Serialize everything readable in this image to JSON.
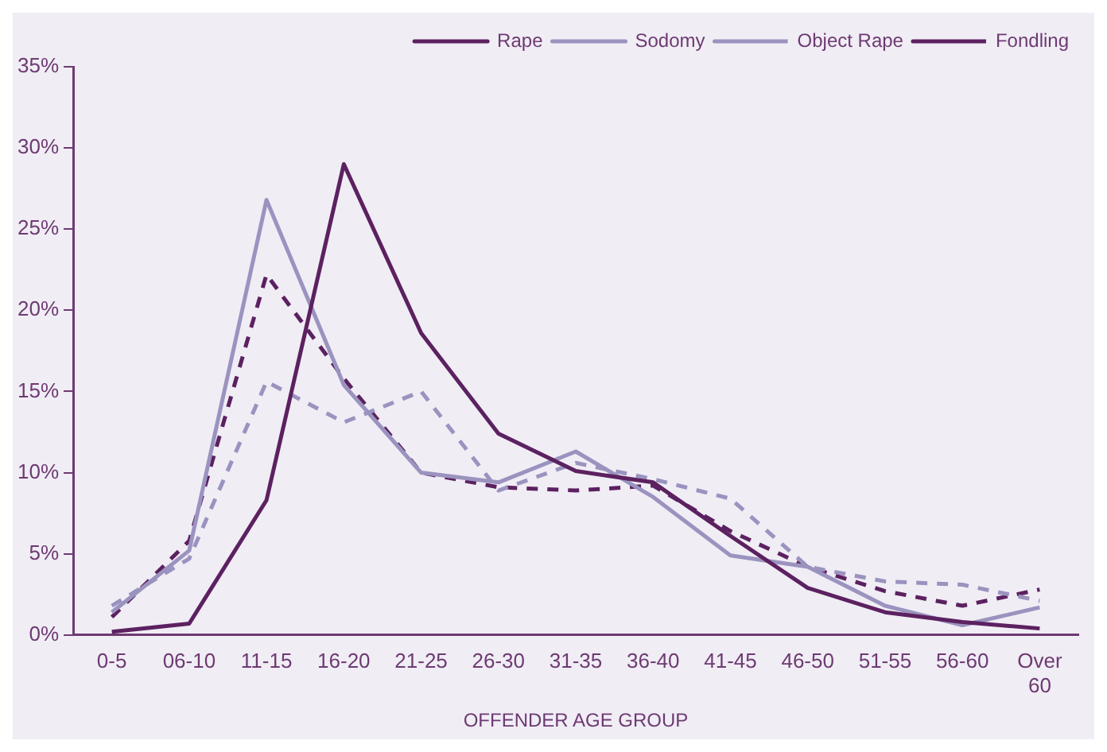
{
  "chart_data": {
    "type": "line",
    "xlabel": "OFFENDER AGE GROUP",
    "categories": [
      "0-5",
      "06-10",
      "11-15",
      "16-20",
      "21-25",
      "26-30",
      "31-35",
      "36-40",
      "41-45",
      "46-50",
      "51-55",
      "56-60",
      "Over 60"
    ],
    "series": [
      {
        "name": "Rape",
        "color": "#5c2160",
        "line_style": "solid",
        "values": [
          0.2,
          0.7,
          8.3,
          29,
          18.6,
          12.4,
          10.1,
          9.4,
          6.1,
          2.9,
          1.4,
          0.8,
          0.4
        ]
      },
      {
        "name": "Sodomy",
        "color": "#9b93bf",
        "line_style": "solid",
        "values": [
          1.4,
          5.2,
          26.8,
          15.4,
          10,
          9.4,
          11.3,
          8.5,
          4.9,
          4.2,
          1.8,
          0.6,
          1.7
        ]
      },
      {
        "name": "Object Rape",
        "color": "#9b93bf",
        "line_style": "dashed",
        "values": [
          1.8,
          4.7,
          15.6,
          13.1,
          15,
          8.9,
          10.6,
          9.6,
          8.4,
          4.2,
          3.3,
          3.1,
          2.1
        ]
      },
      {
        "name": "Fondling",
        "color": "#5c2160",
        "line_style": "dashed",
        "values": [
          1.1,
          5.8,
          22.2,
          15.8,
          10,
          9.1,
          8.9,
          9.2,
          6.4,
          4.2,
          2.7,
          1.8,
          2.8
        ]
      }
    ],
    "ylim": [
      0,
      35
    ],
    "yticks": [
      {
        "value": 0,
        "label": "0%"
      },
      {
        "value": 5,
        "label": "5%"
      },
      {
        "value": 10,
        "label": "10%"
      },
      {
        "value": 15,
        "label": "15%"
      },
      {
        "value": 20,
        "label": "20%"
      },
      {
        "value": 25,
        "label": "25%"
      },
      {
        "value": 30,
        "label": "30%"
      },
      {
        "value": 35,
        "label": "35%"
      }
    ],
    "grid": false,
    "legend": "top right",
    "marker": "none"
  }
}
